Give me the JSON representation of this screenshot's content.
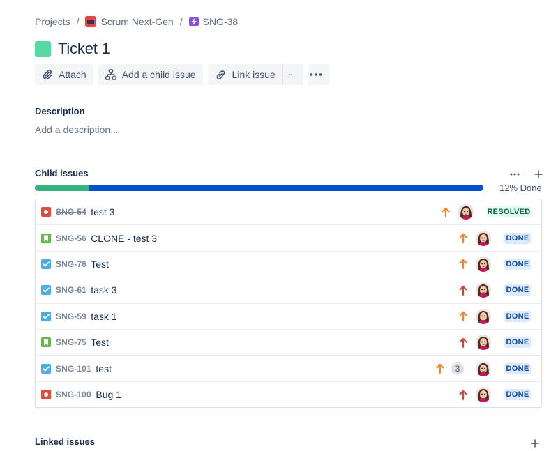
{
  "breadcrumb": {
    "projects": "Projects",
    "separator": "/",
    "project": "Scrum Next-Gen",
    "parent_key": "SNG-38"
  },
  "title": "Ticket 1",
  "toolbar": {
    "attach": "Attach",
    "add_child": "Add a child issue",
    "link_issue": "Link issue"
  },
  "description": {
    "heading": "Description",
    "placeholder": "Add a description..."
  },
  "child_issues": {
    "heading": "Child issues",
    "progress_percent": 12,
    "progress_label": "12% Done",
    "items": [
      {
        "type": "bug",
        "key": "SNG-54",
        "summary": "test 3",
        "priority": "high",
        "status": "RESOLVED",
        "strike": true
      },
      {
        "type": "story",
        "key": "SNG-56",
        "summary": "CLONE - test 3",
        "priority": "high",
        "status": "DONE"
      },
      {
        "type": "task",
        "key": "SNG-76",
        "summary": "Test",
        "priority": "high",
        "status": "DONE"
      },
      {
        "type": "task",
        "key": "SNG-61",
        "summary": "task 3",
        "priority": "highest",
        "status": "DONE"
      },
      {
        "type": "task",
        "key": "SNG-59",
        "summary": "task 1",
        "priority": "high",
        "status": "DONE"
      },
      {
        "type": "story",
        "key": "SNG-75",
        "summary": "Test",
        "priority": "highest",
        "status": "DONE"
      },
      {
        "type": "task",
        "key": "SNG-101",
        "summary": "test",
        "priority": "high",
        "status": "DONE",
        "count": "3"
      },
      {
        "type": "bug",
        "key": "SNG-100",
        "summary": "Bug 1",
        "priority": "highest",
        "status": "DONE"
      }
    ]
  },
  "linked_issues": {
    "heading": "Linked issues"
  },
  "colors": {
    "priority_high": "#ff7f23",
    "priority_highest": "#d04437",
    "progress_done": "#36b37e",
    "progress_remaining": "#0052cc"
  }
}
